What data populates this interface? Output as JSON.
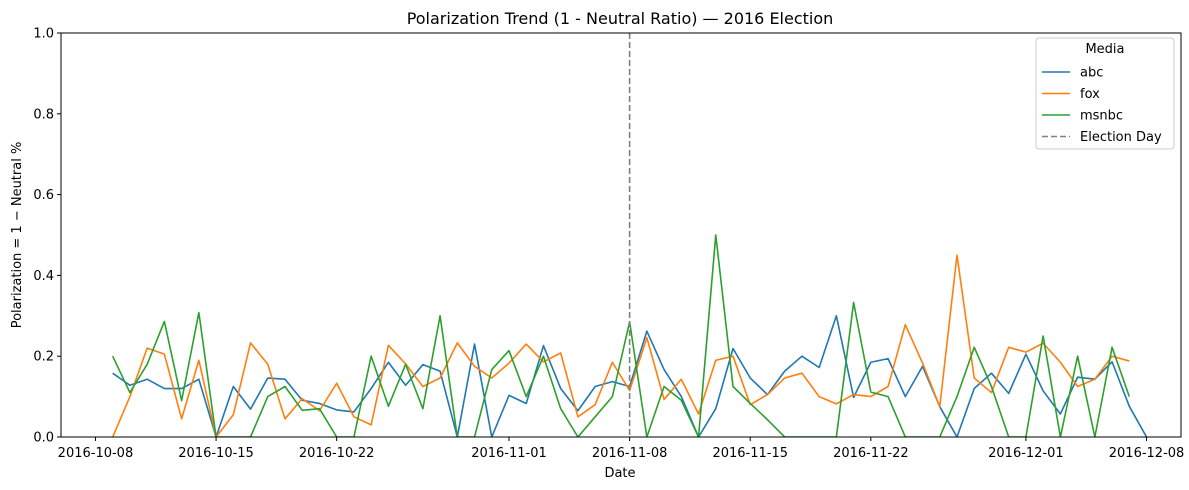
{
  "chart_data": {
    "type": "line",
    "title": "Polarization Trend (1 - Neutral Ratio) — 2016 Election",
    "xlabel": "Date",
    "ylabel": "Polarization = 1 − Neutral %",
    "ylim": [
      0,
      1
    ],
    "yticks": [
      "0.0",
      "0.2",
      "0.4",
      "0.6",
      "0.8",
      "1.0"
    ],
    "xlim": [
      "2016-10-06",
      "2016-12-10"
    ],
    "xticks": [
      "2016-10-08",
      "2016-10-15",
      "2016-10-22",
      "2016-11-01",
      "2016-11-08",
      "2016-11-15",
      "2016-11-22",
      "2016-12-01",
      "2016-12-08"
    ],
    "grid": false,
    "legend": {
      "title": "Media",
      "placement": "top-right"
    },
    "series": [
      {
        "name": "abc",
        "color": "#1f77b4",
        "x": [
          "2016-10-09",
          "2016-10-10",
          "2016-10-11",
          "2016-10-12",
          "2016-10-13",
          "2016-10-14",
          "2016-10-15",
          "2016-10-16",
          "2016-10-17",
          "2016-10-18",
          "2016-10-19",
          "2016-10-20",
          "2016-10-21",
          "2016-10-22",
          "2016-10-23",
          "2016-10-24",
          "2016-10-25",
          "2016-10-26",
          "2016-10-27",
          "2016-10-28",
          "2016-10-29",
          "2016-10-30",
          "2016-10-31",
          "2016-11-01",
          "2016-11-02",
          "2016-11-03",
          "2016-11-04",
          "2016-11-05",
          "2016-11-06",
          "2016-11-07",
          "2016-11-08",
          "2016-11-09",
          "2016-11-10",
          "2016-11-11",
          "2016-11-12",
          "2016-11-13",
          "2016-11-14",
          "2016-11-15",
          "2016-11-16",
          "2016-11-17",
          "2016-11-18",
          "2016-11-19",
          "2016-11-20",
          "2016-11-21",
          "2016-11-22",
          "2016-11-23",
          "2016-11-24",
          "2016-11-25",
          "2016-11-26",
          "2016-11-27",
          "2016-11-28",
          "2016-11-29",
          "2016-11-30",
          "2016-12-01",
          "2016-12-02",
          "2016-12-03",
          "2016-12-04",
          "2016-12-05",
          "2016-12-06",
          "2016-12-07",
          "2016-12-08"
        ],
        "values": [
          0.158,
          0.128,
          0.143,
          0.12,
          0.12,
          0.143,
          0.0,
          0.125,
          0.069,
          0.146,
          0.143,
          0.091,
          0.083,
          0.067,
          0.062,
          0.12,
          0.185,
          0.128,
          0.179,
          0.163,
          0.0,
          0.23,
          0.0,
          0.103,
          0.083,
          0.226,
          0.12,
          0.065,
          0.125,
          0.137,
          0.125,
          0.262,
          0.167,
          0.1,
          0.0,
          0.07,
          0.219,
          0.146,
          0.105,
          0.163,
          0.2,
          0.172,
          0.3,
          0.098,
          0.185,
          0.194,
          0.1,
          0.175,
          0.075,
          0.0,
          0.12,
          0.158,
          0.108,
          0.205,
          0.114,
          0.057,
          0.148,
          0.143,
          0.186,
          0.076,
          0.0
        ]
      },
      {
        "name": "fox",
        "color": "#ff7f0e",
        "x": [
          "2016-10-09",
          "2016-10-10",
          "2016-10-11",
          "2016-10-12",
          "2016-10-13",
          "2016-10-14",
          "2016-10-15",
          "2016-10-16",
          "2016-10-17",
          "2016-10-18",
          "2016-10-19",
          "2016-10-20",
          "2016-10-21",
          "2016-10-22",
          "2016-10-23",
          "2016-10-24",
          "2016-10-25",
          "2016-10-26",
          "2016-10-27",
          "2016-10-28",
          "2016-10-29",
          "2016-10-30",
          "2016-10-31",
          "2016-11-01",
          "2016-11-02",
          "2016-11-03",
          "2016-11-04",
          "2016-11-05",
          "2016-11-06",
          "2016-11-07",
          "2016-11-08",
          "2016-11-09",
          "2016-11-10",
          "2016-11-11",
          "2016-11-12",
          "2016-11-13",
          "2016-11-14",
          "2016-11-15",
          "2016-11-16",
          "2016-11-17",
          "2016-11-18",
          "2016-11-19",
          "2016-11-20",
          "2016-11-21",
          "2016-11-22",
          "2016-11-23",
          "2016-11-24",
          "2016-11-25",
          "2016-11-26",
          "2016-11-27",
          "2016-11-28",
          "2016-11-29",
          "2016-11-30",
          "2016-12-01",
          "2016-12-02",
          "2016-12-03",
          "2016-12-04",
          "2016-12-05",
          "2016-12-06",
          "2016-12-07",
          "2016-12-08"
        ],
        "values": [
          0.0,
          0.1,
          0.22,
          0.205,
          0.045,
          0.19,
          0.0,
          0.055,
          0.233,
          0.18,
          0.045,
          0.095,
          0.065,
          0.133,
          0.05,
          0.03,
          0.227,
          0.181,
          0.125,
          0.146,
          0.233,
          0.175,
          0.146,
          0.183,
          0.23,
          0.186,
          0.208,
          0.05,
          0.08,
          0.185,
          0.115,
          0.246,
          0.093,
          0.143,
          0.057,
          0.19,
          0.2,
          0.08,
          0.105,
          0.146,
          0.158,
          0.1,
          0.082,
          0.105,
          0.1,
          0.125,
          0.278,
          0.183,
          0.075,
          0.45,
          0.146,
          0.11,
          0.222,
          0.21,
          0.232,
          0.185,
          0.125,
          0.143,
          0.2,
          0.188,
          null
        ]
      },
      {
        "name": "msnbc",
        "color": "#2ca02c",
        "x": [
          "2016-10-09",
          "2016-10-10",
          "2016-10-11",
          "2016-10-12",
          "2016-10-13",
          "2016-10-14",
          "2016-10-15",
          "2016-10-16",
          "2016-10-17",
          "2016-10-18",
          "2016-10-19",
          "2016-10-20",
          "2016-10-21",
          "2016-10-22",
          "2016-10-23",
          "2016-10-24",
          "2016-10-25",
          "2016-10-26",
          "2016-10-27",
          "2016-10-28",
          "2016-10-29",
          "2016-10-30",
          "2016-10-31",
          "2016-11-01",
          "2016-11-02",
          "2016-11-03",
          "2016-11-04",
          "2016-11-05",
          "2016-11-06",
          "2016-11-07",
          "2016-11-08",
          "2016-11-09",
          "2016-11-10",
          "2016-11-11",
          "2016-11-12",
          "2016-11-13",
          "2016-11-14",
          "2016-11-15",
          "2016-11-16",
          "2016-11-17",
          "2016-11-18",
          "2016-11-19",
          "2016-11-20",
          "2016-11-21",
          "2016-11-22",
          "2016-11-23",
          "2016-11-24",
          "2016-11-25",
          "2016-11-26",
          "2016-11-27",
          "2016-11-28",
          "2016-11-29",
          "2016-11-30",
          "2016-12-01",
          "2016-12-02",
          "2016-12-03",
          "2016-12-04",
          "2016-12-05",
          "2016-12-06",
          "2016-12-07",
          "2016-12-08"
        ],
        "values": [
          0.2,
          0.11,
          0.18,
          0.286,
          0.09,
          0.308,
          0.0,
          0.0,
          0.0,
          0.1,
          0.125,
          0.066,
          0.07,
          0.0,
          0.0,
          0.2,
          0.076,
          0.18,
          0.07,
          0.3,
          0.0,
          0.0,
          0.167,
          0.214,
          0.1,
          0.2,
          0.07,
          0.0,
          0.05,
          0.1,
          0.285,
          0.0,
          0.125,
          0.091,
          0.0,
          0.5,
          0.125,
          0.083,
          0.043,
          0.0,
          0.0,
          0.0,
          0.0,
          0.333,
          0.111,
          0.1,
          0.0,
          0.0,
          0.0,
          0.1,
          0.222,
          0.125,
          0.0,
          0.0,
          0.25,
          0.0,
          0.2,
          0.0,
          0.222,
          0.1,
          null
        ]
      },
      {
        "name": "Election Day",
        "type": "vline",
        "color": "#808080",
        "style": "dashed",
        "x": "2016-11-08"
      }
    ]
  }
}
